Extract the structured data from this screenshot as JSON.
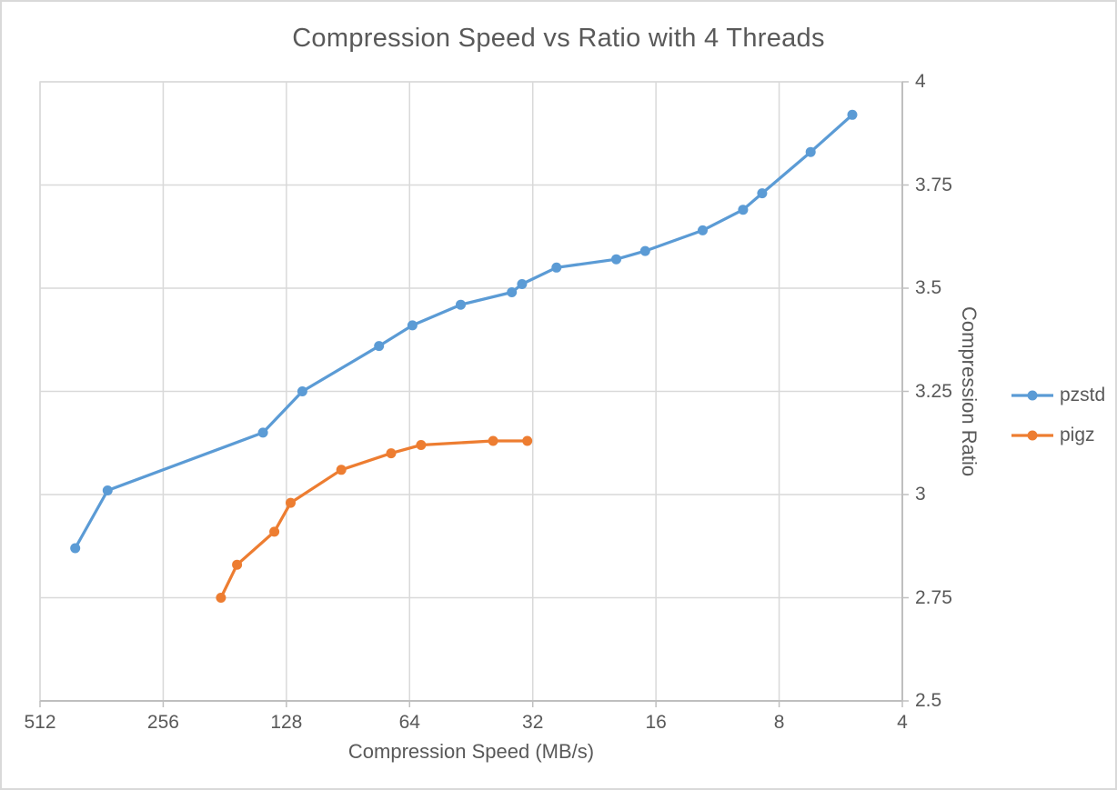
{
  "title": "Compression Speed vs Ratio with 4 Threads",
  "colors": {
    "grid": "#d9d9d9",
    "axis_line": "#bfbfbf",
    "text": "#595959",
    "pzstd": "#5b9bd5",
    "pigz": "#ed7d31",
    "background": "#ffffff"
  },
  "chart_data": {
    "type": "line",
    "title": "Compression Speed vs Ratio with 4 Threads",
    "xlabel": "Compression Speed (MB/s)",
    "ylabel": "Compression Ratio",
    "x_scale": "log2_reversed",
    "x_range": [
      512,
      4
    ],
    "y_range": [
      2.5,
      4
    ],
    "x_ticks": [
      512,
      256,
      128,
      64,
      32,
      16,
      8,
      4
    ],
    "y_ticks": [
      4,
      3.75,
      3.5,
      3.25,
      3,
      2.75,
      2.5
    ],
    "grid": true,
    "legend_position": "right-outside",
    "y_axis_side": "right",
    "series": [
      {
        "name": "pzstd",
        "color": "#5b9bd5",
        "points": [
          [
            420,
            2.87
          ],
          [
            350,
            3.01
          ],
          [
            146,
            3.15
          ],
          [
            117,
            3.25
          ],
          [
            76,
            3.36
          ],
          [
            63,
            3.41
          ],
          [
            48,
            3.46
          ],
          [
            36,
            3.49
          ],
          [
            34,
            3.51
          ],
          [
            28,
            3.55
          ],
          [
            20,
            3.57
          ],
          [
            17,
            3.59
          ],
          [
            12.3,
            3.64
          ],
          [
            9.8,
            3.69
          ],
          [
            8.8,
            3.73
          ],
          [
            6.7,
            3.83
          ],
          [
            5.3,
            3.92
          ]
        ]
      },
      {
        "name": "pigz",
        "color": "#ed7d31",
        "points": [
          [
            185,
            2.75
          ],
          [
            169,
            2.83
          ],
          [
            137,
            2.91
          ],
          [
            125,
            2.98
          ],
          [
            94,
            3.06
          ],
          [
            71,
            3.1
          ],
          [
            60,
            3.12
          ],
          [
            40,
            3.13
          ],
          [
            33,
            3.13
          ]
        ]
      }
    ]
  }
}
